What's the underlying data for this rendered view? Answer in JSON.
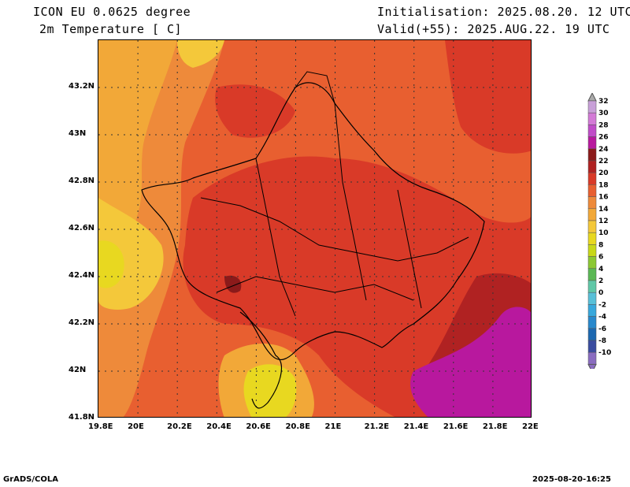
{
  "header": {
    "model": "ICON EU 0.0625 degree",
    "variable": "2m Temperature [ C]",
    "init": "Initialisation: 2025.08.20. 12 UTC",
    "valid": "Valid(+55): 2025.AUG.22. 19 UTC"
  },
  "footer": {
    "left": "GrADS/COLA",
    "right": "2025-08-20-16:25"
  },
  "axes": {
    "lon_labels": [
      "19.8E",
      "20E",
      "20.2E",
      "20.4E",
      "20.6E",
      "20.8E",
      "21E",
      "21.2E",
      "21.4E",
      "21.6E",
      "21.8E",
      "22E"
    ],
    "lat_labels": [
      "41.8N",
      "42N",
      "42.2N",
      "42.4N",
      "42.6N",
      "42.8N",
      "43N",
      "43.2N"
    ]
  },
  "colorbar": {
    "levels": [
      "32",
      "30",
      "28",
      "26",
      "24",
      "22",
      "20",
      "18",
      "16",
      "14",
      "12",
      "10",
      "8",
      "6",
      "4",
      "2",
      "0",
      "-2",
      "-4",
      "-6",
      "-8",
      "-10"
    ],
    "colors": [
      "#c8a0d8",
      "#d37ad6",
      "#c04cc8",
      "#b8189e",
      "#8b1a1a",
      "#b02222",
      "#d93a28",
      "#e85f30",
      "#ee8a3a",
      "#f2a838",
      "#f4c83a",
      "#e8d820",
      "#c8d818",
      "#8cc832",
      "#5ab854",
      "#60c8a8",
      "#58c0d8",
      "#38a8dc",
      "#2888cc",
      "#1c68b0",
      "#3a4ca0",
      "#8a6cc0"
    ]
  },
  "map": {
    "base_color": "#e85f30"
  }
}
